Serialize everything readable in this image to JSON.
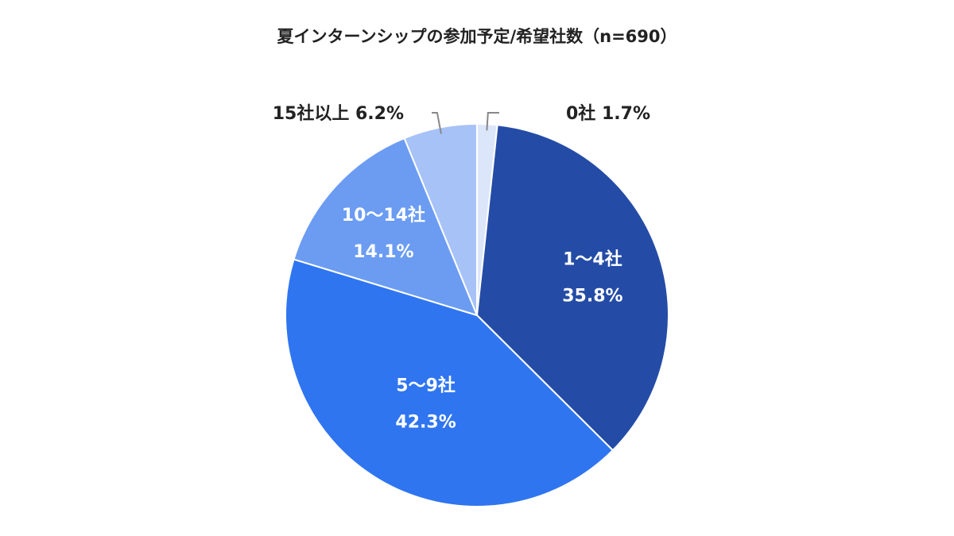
{
  "chart_data": {
    "type": "pie",
    "title": "夏インターンシップの参加予定/希望社数（n=690）",
    "slices": [
      {
        "label": "0社",
        "value": 1.7,
        "value_label": "1.7%",
        "color": "#dce6fa",
        "text_color": "#222222",
        "label_placement": "outside"
      },
      {
        "label": "1〜4社",
        "value": 35.8,
        "value_label": "35.8%",
        "color": "#244ca6",
        "text_color": "#ffffff",
        "label_placement": "inside"
      },
      {
        "label": "5〜9社",
        "value": 42.3,
        "value_label": "42.3%",
        "color": "#2f75f0",
        "text_color": "#ffffff",
        "label_placement": "inside"
      },
      {
        "label": "10〜14社",
        "value": 14.1,
        "value_label": "14.1%",
        "color": "#6b9cf2",
        "text_color": "#ffffff",
        "label_placement": "inside"
      },
      {
        "label": "15社以上",
        "value": 6.2,
        "value_label": "6.2%",
        "color": "#a6c2f7",
        "text_color": "#222222",
        "label_placement": "outside"
      }
    ],
    "start_angle": "12 o'clock",
    "direction": "clockwise",
    "legend": "none"
  }
}
